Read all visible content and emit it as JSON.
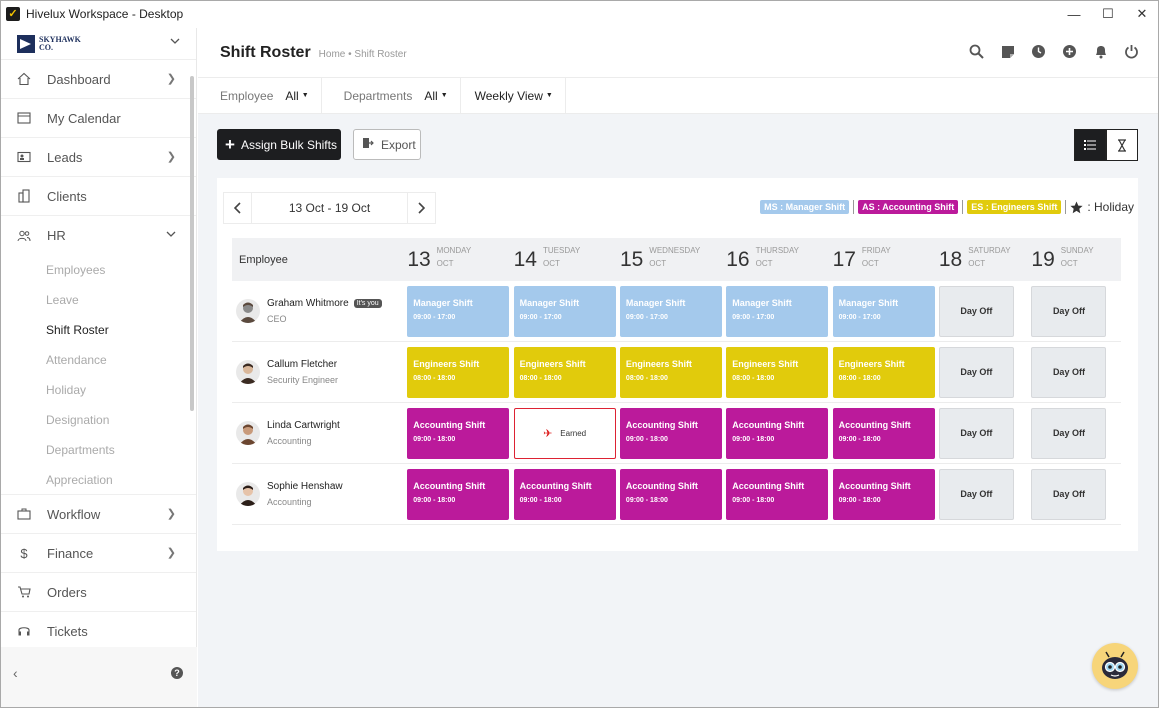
{
  "window": {
    "title": "Hivelux Workspace - Desktop",
    "controls": [
      "—",
      "☐",
      "✕"
    ]
  },
  "brand": {
    "line1": "SKYHAWK",
    "line2": "CO."
  },
  "nav": {
    "dashboard": "Dashboard",
    "calendar": "My Calendar",
    "leads": "Leads",
    "clients": "Clients",
    "hr": "HR",
    "hr_sub": [
      "Employees",
      "Leave",
      "Shift Roster",
      "Attendance",
      "Holiday",
      "Designation",
      "Departments",
      "Appreciation"
    ],
    "workflow": "Workflow",
    "finance": "Finance",
    "orders": "Orders",
    "tickets": "Tickets"
  },
  "header": {
    "title": "Shift Roster",
    "breadcrumb": "Home • Shift Roster"
  },
  "filters": {
    "employee_label": "Employee",
    "employee_value": "All",
    "departments_label": "Departments",
    "departments_value": "All",
    "view_value": "Weekly View"
  },
  "toolbar": {
    "assign_label": "Assign Bulk Shifts",
    "export_label": "Export"
  },
  "week": {
    "range": "13 Oct - 19 Oct"
  },
  "legend": {
    "ms": "MS : Manager Shift",
    "as": "AS : Accounting Shift",
    "es": "ES : Engineers Shift",
    "holiday": ": Holiday",
    "colors": {
      "ms": "#a4c9ec",
      "as": "#bb1a9b",
      "es": "#e1cb0c"
    }
  },
  "grid": {
    "employee_header": "Employee",
    "days": [
      {
        "num": "13",
        "name": "MONDAY",
        "month": "OCT"
      },
      {
        "num": "14",
        "name": "TUESDAY",
        "month": "OCT"
      },
      {
        "num": "15",
        "name": "WEDNESDAY",
        "month": "OCT"
      },
      {
        "num": "16",
        "name": "THURSDAY",
        "month": "OCT"
      },
      {
        "num": "17",
        "name": "FRIDAY",
        "month": "OCT"
      },
      {
        "num": "18",
        "name": "SATURDAY",
        "month": "OCT"
      },
      {
        "num": "19",
        "name": "SUNDAY",
        "month": "OCT"
      }
    ],
    "rows": [
      {
        "name": "Graham Whitmore",
        "title": "CEO",
        "badge": "It's you",
        "cells": [
          {
            "kind": "ms",
            "label": "Manager Shift",
            "time": "09:00 - 17:00"
          },
          {
            "kind": "ms",
            "label": "Manager Shift",
            "time": "09:00 - 17:00"
          },
          {
            "kind": "ms",
            "label": "Manager Shift",
            "time": "09:00 - 17:00"
          },
          {
            "kind": "ms",
            "label": "Manager Shift",
            "time": "09:00 - 17:00"
          },
          {
            "kind": "ms",
            "label": "Manager Shift",
            "time": "09:00 - 17:00"
          },
          {
            "kind": "off",
            "label": "Day Off"
          },
          {
            "kind": "off",
            "label": "Day Off"
          }
        ]
      },
      {
        "name": "Callum Fletcher",
        "title": "Security Engineer",
        "badge": "",
        "cells": [
          {
            "kind": "es",
            "label": "Engineers Shift",
            "time": "08:00 - 18:00"
          },
          {
            "kind": "es",
            "label": "Engineers Shift",
            "time": "08:00 - 18:00"
          },
          {
            "kind": "es",
            "label": "Engineers Shift",
            "time": "08:00 - 18:00"
          },
          {
            "kind": "es",
            "label": "Engineers Shift",
            "time": "08:00 - 18:00"
          },
          {
            "kind": "es",
            "label": "Engineers Shift",
            "time": "08:00 - 18:00"
          },
          {
            "kind": "off",
            "label": "Day Off"
          },
          {
            "kind": "off",
            "label": "Day Off"
          }
        ]
      },
      {
        "name": "Linda Cartwright",
        "title": "Accounting",
        "badge": "",
        "cells": [
          {
            "kind": "as",
            "label": "Accounting Shift",
            "time": "09:00 - 18:00"
          },
          {
            "kind": "earned",
            "label": "Earned"
          },
          {
            "kind": "as",
            "label": "Accounting Shift",
            "time": "09:00 - 18:00"
          },
          {
            "kind": "as",
            "label": "Accounting Shift",
            "time": "09:00 - 18:00"
          },
          {
            "kind": "as",
            "label": "Accounting Shift",
            "time": "09:00 - 18:00"
          },
          {
            "kind": "off",
            "label": "Day Off"
          },
          {
            "kind": "off",
            "label": "Day Off"
          }
        ]
      },
      {
        "name": "Sophie Henshaw",
        "title": "Accounting",
        "badge": "",
        "cells": [
          {
            "kind": "as",
            "label": "Accounting Shift",
            "time": "09:00 - 18:00"
          },
          {
            "kind": "as",
            "label": "Accounting Shift",
            "time": "09:00 - 18:00"
          },
          {
            "kind": "as",
            "label": "Accounting Shift",
            "time": "09:00 - 18:00"
          },
          {
            "kind": "as",
            "label": "Accounting Shift",
            "time": "09:00 - 18:00"
          },
          {
            "kind": "as",
            "label": "Accounting Shift",
            "time": "09:00 - 18:00"
          },
          {
            "kind": "off",
            "label": "Day Off"
          },
          {
            "kind": "off",
            "label": "Day Off"
          }
        ]
      }
    ]
  }
}
